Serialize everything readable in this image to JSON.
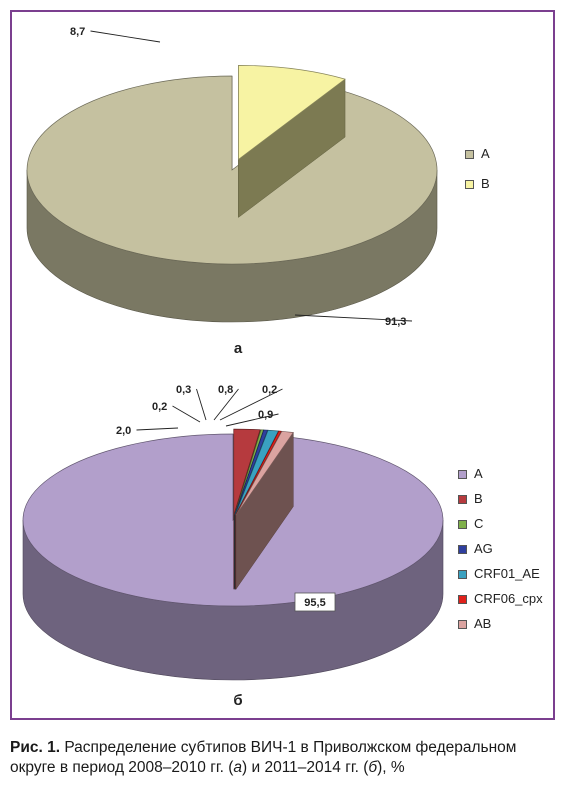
{
  "caption": {
    "prefix": "Рис. 1.",
    "text": " Распределение субтипов ВИЧ-1 в Приволжском федеральном округе в период 2008–2010 гг. (",
    "a": "а",
    "mid": ") и 2011–2014 гг. (",
    "b": "б",
    "suffix": "), %"
  },
  "chart_data": [
    {
      "type": "pie",
      "panel_label": "а",
      "title": "",
      "categories": [
        "A",
        "B"
      ],
      "values": [
        91.3,
        8.7
      ],
      "value_labels": [
        "91,3",
        "8,7"
      ],
      "colors": [
        "#c5c1a0",
        "#f7f3a3"
      ],
      "exploded": [
        "B"
      ],
      "legend_position": "right"
    },
    {
      "type": "pie",
      "panel_label": "б",
      "title": "",
      "categories": [
        "A",
        "B",
        "C",
        "AG",
        "CRF01_AE",
        "CRF06_cpx",
        "AB"
      ],
      "values": [
        95.5,
        2.0,
        0.2,
        0.3,
        0.8,
        0.2,
        0.9
      ],
      "value_labels": [
        "95,5",
        "2,0",
        "0,2",
        "0,3",
        "0,8",
        "0,2",
        "0,9"
      ],
      "colors": [
        "#b29fcb",
        "#b63a3e",
        "#7fb04a",
        "#2f3f9e",
        "#3aa1c0",
        "#e0211b",
        "#dba3a0"
      ],
      "exploded": [
        "B",
        "C",
        "AG",
        "CRF01_AE",
        "CRF06_cpx",
        "AB"
      ],
      "legend_position": "right"
    }
  ]
}
